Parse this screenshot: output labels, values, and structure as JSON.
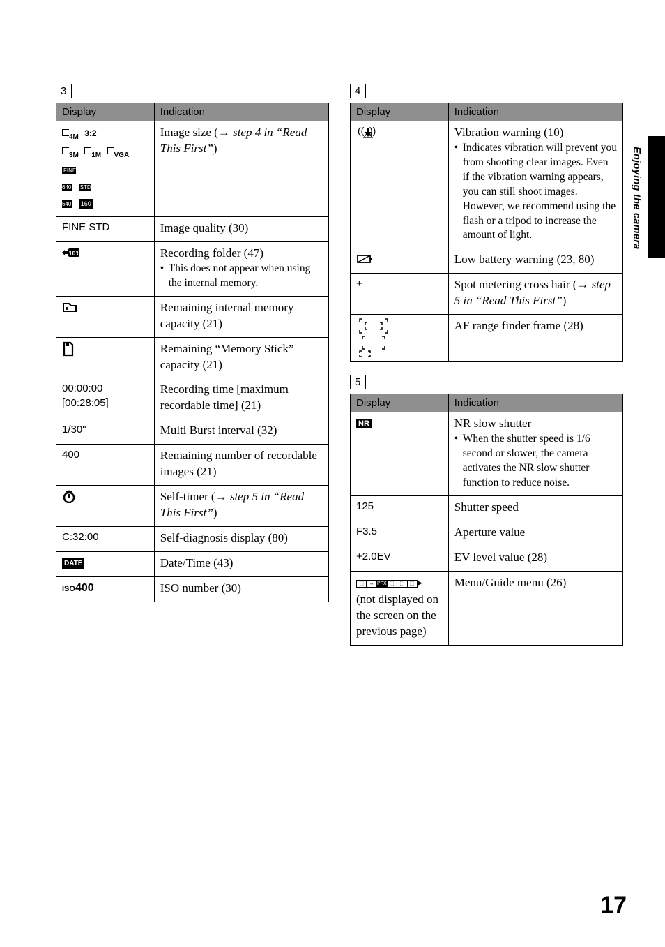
{
  "side_label": "Enjoying the camera",
  "page_number": "17",
  "section3": {
    "num": "3",
    "hdr_display": "Display",
    "hdr_indication": "Indication",
    "rows": [
      {
        "d_html": "size_icons",
        "i": "Image size (→ <span class='italic'>step 4 in “Read This First”</span>)"
      },
      {
        "d": "FINE STD",
        "i": "Image quality (30)"
      },
      {
        "d_html": "rec_folder_icon",
        "i": "Recording folder (47)",
        "bullet": "This does not appear when using the internal memory."
      },
      {
        "d_html": "internal_mem_icon",
        "i": "Remaining internal memory capacity (21)"
      },
      {
        "d_html": "card_icon",
        "i": "Remaining “Memory Stick” capacity (21)"
      },
      {
        "d": "00:00:00\n[00:28:05]",
        "i": "Recording time [maximum recordable time] (21)"
      },
      {
        "d": "1/30\"",
        "i": "Multi Burst interval (32)"
      },
      {
        "d": "400",
        "i": "Remaining number of recordable images (21)"
      },
      {
        "d_html": "timer_icon",
        "i": "Self-timer (→ <span class='italic'>step 5 in “Read This First”</span>)"
      },
      {
        "d": "C:32:00",
        "i": "Self-diagnosis display (80)"
      },
      {
        "d_html": "date_icon",
        "i": "Date/Time (43)"
      },
      {
        "d_html": "iso_icon",
        "i": "ISO number (30)"
      }
    ]
  },
  "section4": {
    "num": "4",
    "hdr_display": "Display",
    "hdr_indication": "Indication",
    "rows": [
      {
        "d_html": "vibration_icon",
        "i": "Vibration warning (10)",
        "bullet": "Indicates vibration will prevent you from shooting clear images. Even if the vibration warning appears, you can still shoot images. However, we recommend using the flash or a tripod to increase the amount of light."
      },
      {
        "d_html": "lowbatt_icon",
        "i": "Low battery warning (23, 80)"
      },
      {
        "d": "+",
        "i": "Spot metering cross hair (→ <span class='italic'>step 5 in “Read This First”</span>)"
      },
      {
        "d_html": "af_frame_icon",
        "i": "AF range finder frame (28)"
      }
    ]
  },
  "section5": {
    "num": "5",
    "hdr_display": "Display",
    "hdr_indication": "Indication",
    "rows": [
      {
        "d_html": "nr_icon",
        "i": "NR slow shutter",
        "bullet": "When the shutter speed is 1/6 second or slower, the camera activates the NR slow shutter function to reduce noise."
      },
      {
        "d": "125",
        "i": "Shutter speed"
      },
      {
        "d": "F3.5",
        "i": "Aperture value"
      },
      {
        "d": "+2.0EV",
        "i": "EV level value (28)"
      },
      {
        "d_html": "menu_strip",
        "d_after": "(not displayed on the screen on the previous page)",
        "i": "Menu/Guide menu (26)"
      }
    ]
  }
}
